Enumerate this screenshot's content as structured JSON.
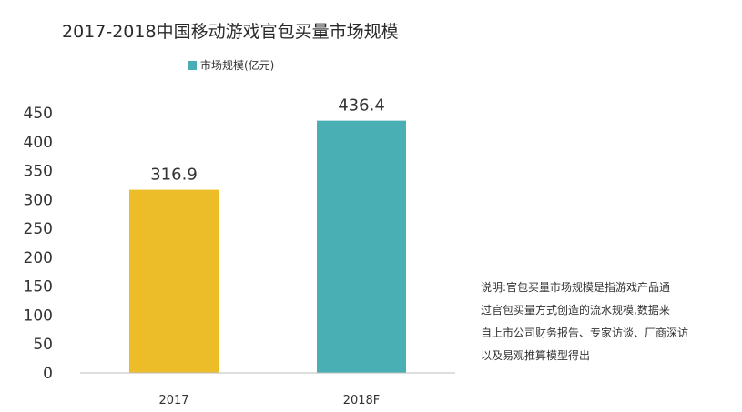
{
  "chart_data": {
    "type": "bar",
    "title": "2017-2018中国移动游戏官包买量市场规模",
    "categories": [
      "2017",
      "2018F"
    ],
    "series": [
      {
        "name": "市场规模(亿元)",
        "values": [
          316.9,
          436.4
        ],
        "colors": [
          "#ecbd29",
          "#4aafb5"
        ]
      }
    ],
    "data_labels": [
      "316.9",
      "436.4"
    ],
    "ylim": [
      0,
      450
    ],
    "yticks": [
      0,
      50,
      100,
      150,
      200,
      250,
      300,
      350,
      400,
      450
    ],
    "xlabel": "",
    "ylabel": "",
    "grid": false,
    "legend_position": "top"
  },
  "legend": {
    "color": "#4aafb5",
    "label": "市场规模(亿元)"
  },
  "note": [
    "说明:官包买量市场规模是指游戏产品通",
    "过官包买量方式创造的流水规模,数据来",
    "自上市公司财务报告、专家访谈、厂商深访",
    "以及易观推算模型得出"
  ]
}
